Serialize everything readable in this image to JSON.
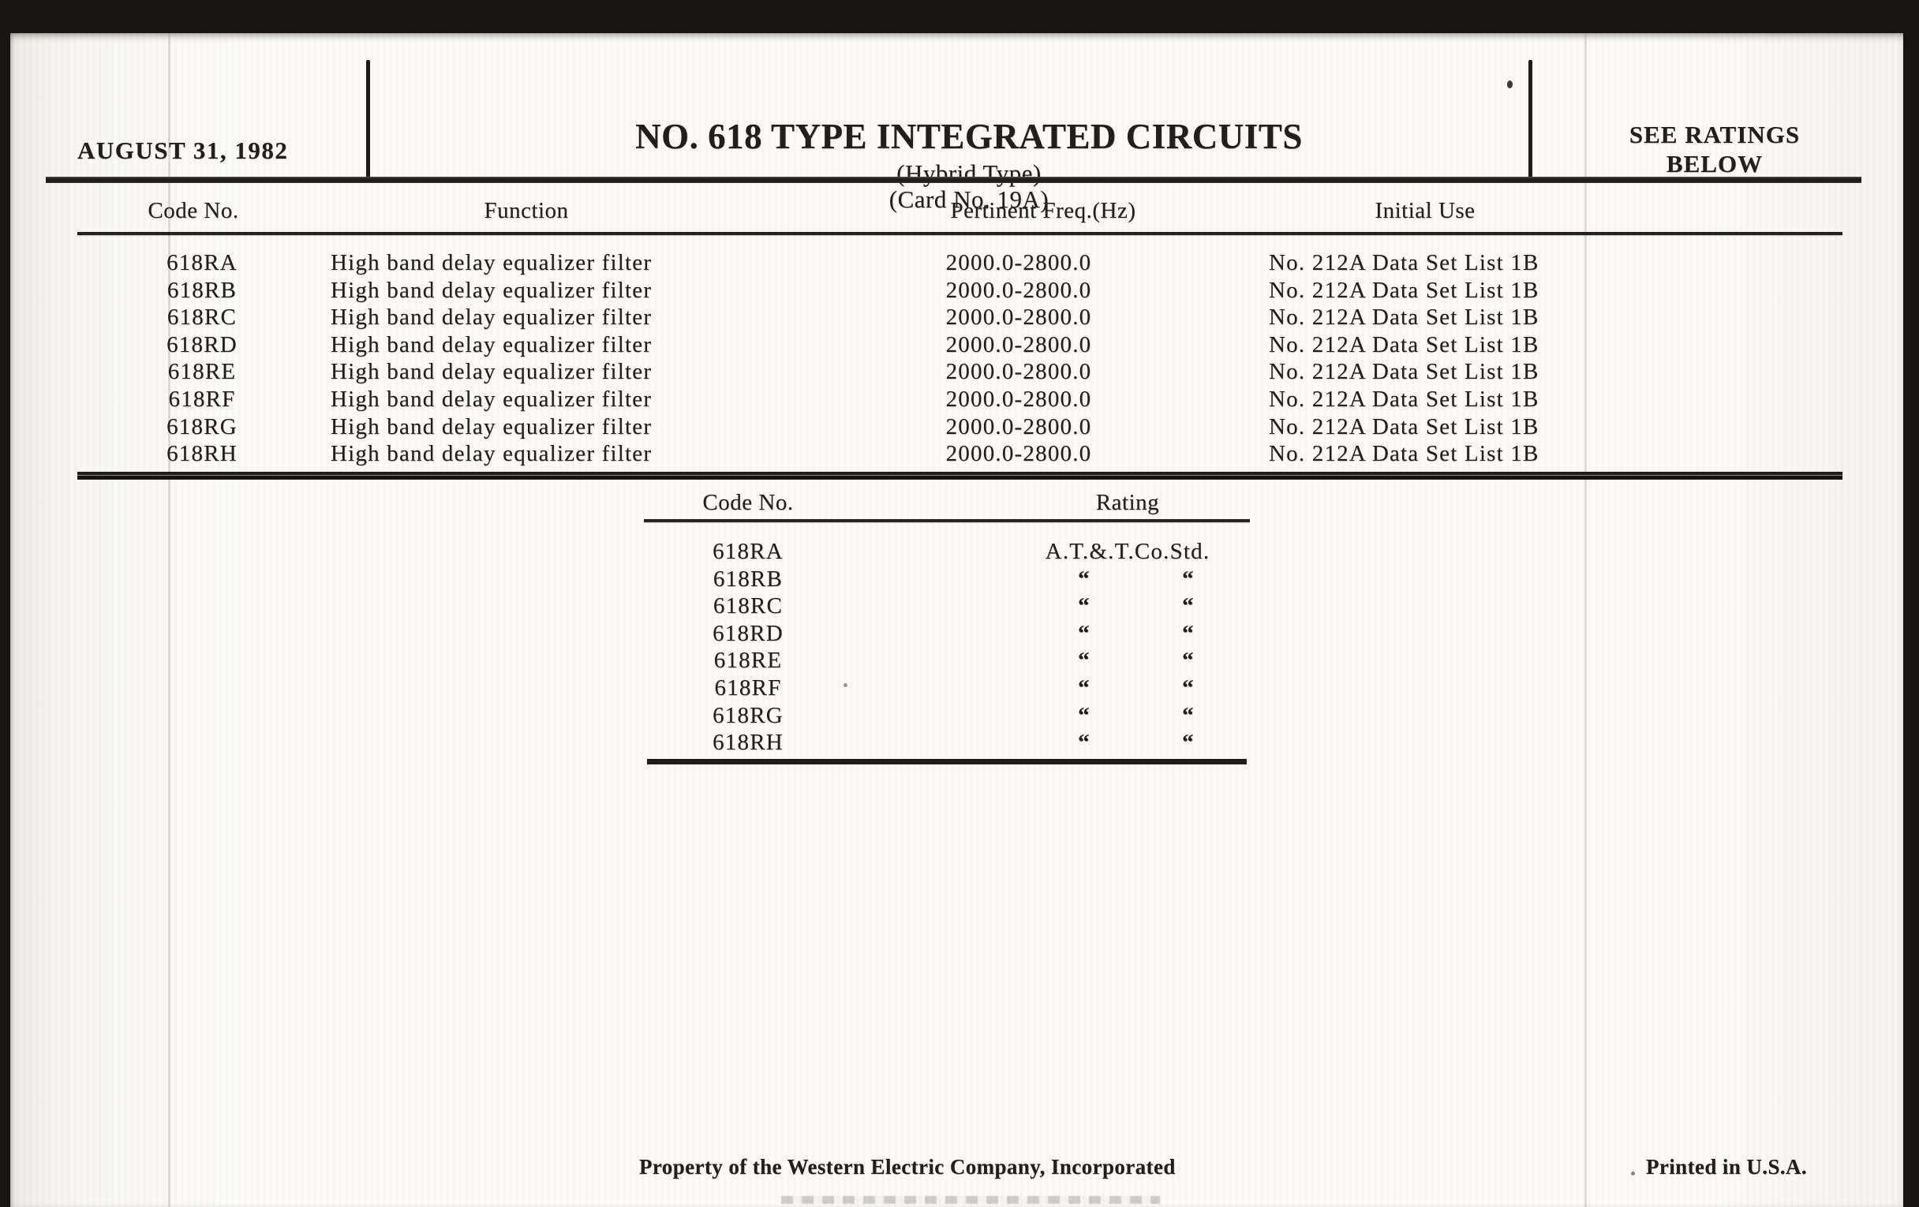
{
  "card": {
    "date": "AUGUST 31, 1982",
    "title": "NO. 618 TYPE INTEGRATED CIRCUITS",
    "subtitle_type": "(Hybrid Type)",
    "subtitle_card_no": "(Card No. 19A)",
    "ratings_note_line1": "SEE RATINGS",
    "ratings_note_line2": "BELOW"
  },
  "main_table": {
    "headers": {
      "code": "Code No.",
      "function": "Function",
      "freq": "Pertinent Freq.(Hz)",
      "use": "Initial Use"
    },
    "rows": [
      {
        "code": "618RA",
        "function": "High band delay equalizer filter",
        "freq": "2000.0-2800.0",
        "use": "No. 212A Data Set List 1B"
      },
      {
        "code": "618RB",
        "function": "High band delay equalizer filter",
        "freq": "2000.0-2800.0",
        "use": "No. 212A Data Set List 1B"
      },
      {
        "code": "618RC",
        "function": "High band delay equalizer filter",
        "freq": "2000.0-2800.0",
        "use": "No. 212A Data Set List 1B"
      },
      {
        "code": "618RD",
        "function": "High band delay equalizer filter",
        "freq": "2000.0-2800.0",
        "use": "No. 212A Data Set List 1B"
      },
      {
        "code": "618RE",
        "function": "High band delay equalizer filter",
        "freq": "2000.0-2800.0",
        "use": "No. 212A Data Set List 1B"
      },
      {
        "code": "618RF",
        "function": "High band delay equalizer filter",
        "freq": "2000.0-2800.0",
        "use": "No. 212A Data Set List 1B"
      },
      {
        "code": "618RG",
        "function": "High band delay equalizer filter",
        "freq": "2000.0-2800.0",
        "use": "No. 212A Data Set List 1B"
      },
      {
        "code": "618RH",
        "function": "High band delay equalizer filter",
        "freq": "2000.0-2800.0",
        "use": "No. 212A Data Set List 1B"
      }
    ]
  },
  "rating_table": {
    "headers": {
      "code": "Code No.",
      "rating": "Rating"
    },
    "ditto_mark": "“",
    "rows": [
      {
        "code": "618RA",
        "rating": "A.T.&.T.Co.Std."
      },
      {
        "code": "618RB",
        "rating": ""
      },
      {
        "code": "618RC",
        "rating": ""
      },
      {
        "code": "618RD",
        "rating": ""
      },
      {
        "code": "618RE",
        "rating": ""
      },
      {
        "code": "618RF",
        "rating": ""
      },
      {
        "code": "618RG",
        "rating": ""
      },
      {
        "code": "618RH",
        "rating": ""
      }
    ]
  },
  "footer": {
    "left": "Property of the Western Electric Company, Incorporated",
    "right": "Printed in U.S.A."
  },
  "colors": {
    "paper": "#faf9f5",
    "ink": "#201f1d",
    "scan_border": "#171613"
  }
}
